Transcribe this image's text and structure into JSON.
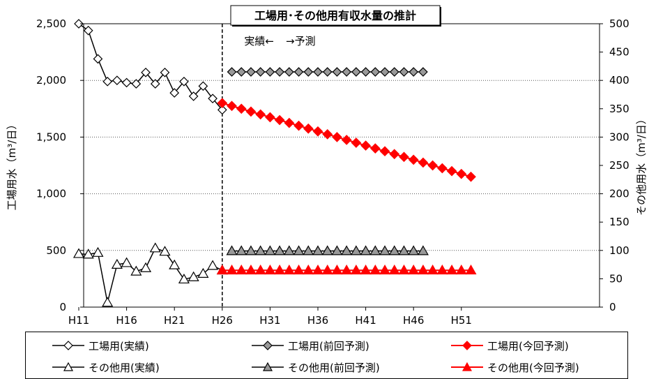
{
  "chart_data": {
    "type": "line",
    "title": "工場用･その他用有収水量の推計",
    "ylabel_left": "工場用水（m³/日）",
    "ylabel_right": "その他用水（m³/日）",
    "ylim_left": [
      0,
      2500
    ],
    "ylim_right": [
      0,
      500
    ],
    "x_categories": [
      "H11",
      "H12",
      "H13",
      "H14",
      "H15",
      "H16",
      "H17",
      "H18",
      "H19",
      "H20",
      "H21",
      "H22",
      "H23",
      "H24",
      "H25",
      "H26",
      "H27",
      "H28",
      "H29",
      "H30",
      "H31",
      "H32",
      "H33",
      "H34",
      "H35",
      "H36",
      "H37",
      "H38",
      "H39",
      "H40",
      "H41",
      "H42",
      "H43",
      "H44",
      "H45",
      "H46",
      "H47",
      "H48",
      "H49",
      "H50",
      "H51",
      "H52"
    ],
    "x_tick_labels": [
      "H11",
      "H16",
      "H21",
      "H26",
      "H31",
      "H36",
      "H41",
      "H46",
      "H51"
    ],
    "y_left_ticks": [
      "0",
      "500",
      "1,000",
      "1,500",
      "2,000",
      "2,500"
    ],
    "y_right_ticks": [
      "0",
      "50",
      "100",
      "150",
      "200",
      "250",
      "300",
      "350",
      "400",
      "450",
      "500"
    ],
    "divider_annotation_left": "実績←",
    "divider_annotation_right": "→予測",
    "grid": "horizontal dotted",
    "legend_position": "bottom",
    "series": [
      {
        "name": "工場用(実績)",
        "axis": "left",
        "marker": "diamond",
        "marker_fill": "#ffffff",
        "line_color": "#000000",
        "x": [
          "H11",
          "H12",
          "H13",
          "H14",
          "H15",
          "H16",
          "H17",
          "H18",
          "H19",
          "H20",
          "H21",
          "H22",
          "H23",
          "H24",
          "H25",
          "H26"
        ],
        "values": [
          2500,
          2440,
          2190,
          1990,
          2000,
          1980,
          1970,
          2070,
          1970,
          2070,
          1890,
          1990,
          1860,
          1950,
          1840,
          1740
        ]
      },
      {
        "name": "工場用(前回予測)",
        "axis": "left",
        "marker": "diamond",
        "marker_fill": "#999999",
        "line_color": "#000000",
        "x": [
          "H27",
          "H28",
          "H29",
          "H30",
          "H31",
          "H32",
          "H33",
          "H34",
          "H35",
          "H36",
          "H37",
          "H38",
          "H39",
          "H40",
          "H41",
          "H42",
          "H43",
          "H44",
          "H45",
          "H46",
          "H47"
        ],
        "values": [
          2075,
          2075,
          2075,
          2075,
          2075,
          2075,
          2075,
          2075,
          2075,
          2075,
          2075,
          2075,
          2075,
          2075,
          2075,
          2075,
          2075,
          2075,
          2075,
          2075,
          2075
        ]
      },
      {
        "name": "工場用(今回予測)",
        "axis": "left",
        "marker": "diamond",
        "marker_fill": "#ff0000",
        "line_color": "#ff0000",
        "x": [
          "H26",
          "H27",
          "H28",
          "H29",
          "H30",
          "H31",
          "H32",
          "H33",
          "H34",
          "H35",
          "H36",
          "H37",
          "H38",
          "H39",
          "H40",
          "H41",
          "H42",
          "H43",
          "H44",
          "H45",
          "H46",
          "H47",
          "H48",
          "H49",
          "H50",
          "H51",
          "H52"
        ],
        "values": [
          1800,
          1775,
          1750,
          1725,
          1700,
          1675,
          1650,
          1625,
          1600,
          1575,
          1550,
          1525,
          1500,
          1475,
          1450,
          1425,
          1400,
          1375,
          1350,
          1325,
          1300,
          1275,
          1250,
          1225,
          1200,
          1175,
          1150
        ]
      },
      {
        "name": "その他用(実績)",
        "axis": "right",
        "marker": "triangle",
        "marker_fill": "#ffffff",
        "line_color": "#000000",
        "x": [
          "H11",
          "H12",
          "H13",
          "H14",
          "H15",
          "H16",
          "H17",
          "H18",
          "H19",
          "H20",
          "H21",
          "H22",
          "H23",
          "H24",
          "H25",
          "H26"
        ],
        "values": [
          94,
          93,
          96,
          8,
          75,
          78,
          63,
          69,
          104,
          98,
          74,
          49,
          53,
          59,
          73,
          65
        ]
      },
      {
        "name": "その他用(前回予測)",
        "axis": "right",
        "marker": "triangle",
        "marker_fill": "#999999",
        "line_color": "#000000",
        "x": [
          "H27",
          "H28",
          "H29",
          "H30",
          "H31",
          "H32",
          "H33",
          "H34",
          "H35",
          "H36",
          "H37",
          "H38",
          "H39",
          "H40",
          "H41",
          "H42",
          "H43",
          "H44",
          "H45",
          "H46",
          "H47"
        ],
        "values": [
          99,
          99,
          99,
          99,
          99,
          99,
          99,
          99,
          99,
          99,
          99,
          99,
          99,
          99,
          99,
          99,
          99,
          99,
          99,
          99,
          99
        ]
      },
      {
        "name": "その他用(今回予測)",
        "axis": "right",
        "marker": "triangle",
        "marker_fill": "#ff0000",
        "line_color": "#ff0000",
        "x": [
          "H26",
          "H27",
          "H28",
          "H29",
          "H30",
          "H31",
          "H32",
          "H33",
          "H34",
          "H35",
          "H36",
          "H37",
          "H38",
          "H39",
          "H40",
          "H41",
          "H42",
          "H43",
          "H44",
          "H45",
          "H46",
          "H47",
          "H48",
          "H49",
          "H50",
          "H51",
          "H52"
        ],
        "values": [
          65,
          65,
          65,
          65,
          65,
          65,
          65,
          65,
          65,
          65,
          65,
          65,
          65,
          65,
          65,
          65,
          65,
          65,
          65,
          65,
          65,
          65,
          65,
          65,
          65,
          65,
          65
        ]
      }
    ]
  }
}
